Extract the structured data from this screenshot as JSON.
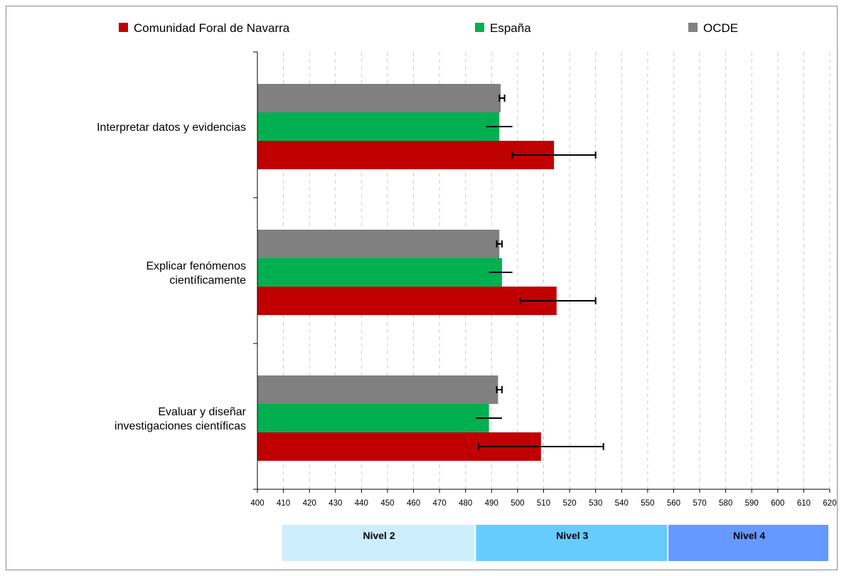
{
  "chart_data": {
    "type": "bar",
    "orientation": "horizontal",
    "categories": [
      "Interpretar datos y evidencias",
      "Explicar fenómenos científicamente",
      "Evaluar y diseñar investigaciones científicas"
    ],
    "category_lines": [
      [
        "Interpretar datos y evidencias"
      ],
      [
        "Explicar fenómenos",
        "científicamente"
      ],
      [
        "Evaluar y diseñar",
        "investigaciones científicas"
      ]
    ],
    "series": [
      {
        "name": "Comunidad Foral de Navarra",
        "color": "#c00000",
        "values": [
          514,
          515,
          509
        ],
        "err_low": [
          498,
          501,
          485
        ],
        "err_high": [
          530,
          530,
          533
        ]
      },
      {
        "name": "España",
        "color": "#00b050",
        "values": [
          493,
          494,
          489
        ],
        "err_low": [
          488,
          489,
          484
        ],
        "err_high": [
          498,
          498,
          494
        ]
      },
      {
        "name": "OCDE",
        "color": "#808080",
        "values": [
          493.5,
          493,
          492.5
        ],
        "err_low": [
          493,
          492,
          492
        ],
        "err_high": [
          495,
          494,
          494
        ]
      }
    ],
    "xlim": [
      400,
      620
    ],
    "xticks": [
      400,
      410,
      420,
      430,
      440,
      450,
      460,
      470,
      480,
      490,
      500,
      510,
      520,
      530,
      540,
      550,
      560,
      570,
      580,
      590,
      600,
      610,
      620
    ],
    "grid": true,
    "legend": "top",
    "levels": [
      {
        "label": "Nivel 2",
        "from": 409.5,
        "to": 484,
        "color": "#cdeefc"
      },
      {
        "label": "Nivel 3",
        "from": 484,
        "to": 558,
        "color": "#66ccff"
      },
      {
        "label": "Nivel 4",
        "from": 558,
        "to": 620,
        "color": "#6699ff"
      }
    ]
  }
}
